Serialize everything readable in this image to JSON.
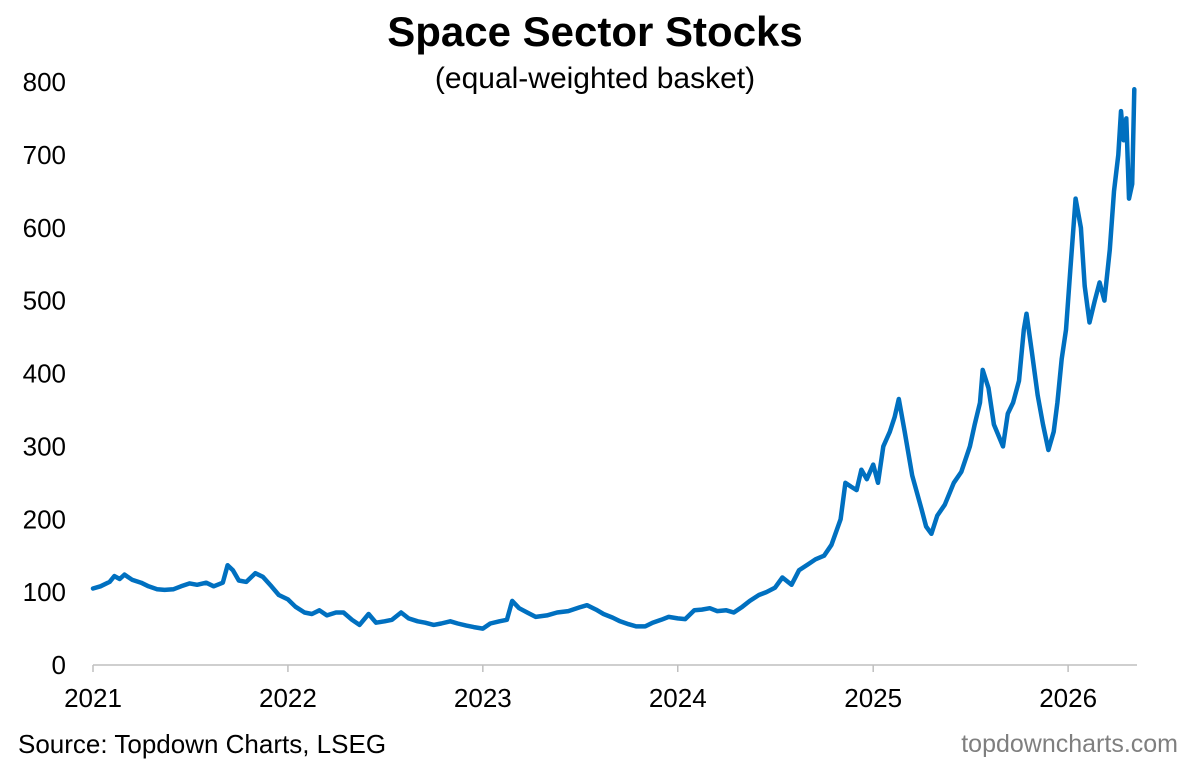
{
  "chart_data": {
    "type": "line",
    "title": "Space Sector Stocks",
    "subtitle": "(equal-weighted basket)",
    "xlabel": "",
    "ylabel": "",
    "ylim": [
      0,
      800
    ],
    "xlim": [
      "2021-01-01",
      "2026-05-10"
    ],
    "y_ticks": [
      "0",
      "100",
      "200",
      "300",
      "400",
      "500",
      "600",
      "700",
      "800"
    ],
    "x_ticks": [
      "2021",
      "2022",
      "2023",
      "2024",
      "2025",
      "2026"
    ],
    "grid": false,
    "legend": "none",
    "series": [
      {
        "color": "#0070C0",
        "points": [
          [
            "2021-01-01",
            105
          ],
          [
            "2021-01-15",
            108
          ],
          [
            "2021-02-01",
            114
          ],
          [
            "2021-02-10",
            122
          ],
          [
            "2021-02-20",
            118
          ],
          [
            "2021-03-01",
            124
          ],
          [
            "2021-03-15",
            117
          ],
          [
            "2021-04-01",
            113
          ],
          [
            "2021-04-15",
            108
          ],
          [
            "2021-05-01",
            104
          ],
          [
            "2021-05-15",
            103
          ],
          [
            "2021-06-01",
            104
          ],
          [
            "2021-06-15",
            108
          ],
          [
            "2021-07-01",
            112
          ],
          [
            "2021-07-15",
            110
          ],
          [
            "2021-08-01",
            113
          ],
          [
            "2021-08-15",
            108
          ],
          [
            "2021-09-01",
            113
          ],
          [
            "2021-09-10",
            137
          ],
          [
            "2021-09-20",
            130
          ],
          [
            "2021-10-01",
            116
          ],
          [
            "2021-10-15",
            114
          ],
          [
            "2021-11-01",
            126
          ],
          [
            "2021-11-15",
            121
          ],
          [
            "2021-12-01",
            108
          ],
          [
            "2021-12-15",
            96
          ],
          [
            "2022-01-01",
            90
          ],
          [
            "2022-01-15",
            80
          ],
          [
            "2022-02-01",
            72
          ],
          [
            "2022-02-15",
            70
          ],
          [
            "2022-03-01",
            75
          ],
          [
            "2022-03-15",
            68
          ],
          [
            "2022-04-01",
            72
          ],
          [
            "2022-04-15",
            72
          ],
          [
            "2022-05-01",
            62
          ],
          [
            "2022-05-15",
            55
          ],
          [
            "2022-06-01",
            70
          ],
          [
            "2022-06-15",
            58
          ],
          [
            "2022-07-01",
            60
          ],
          [
            "2022-07-15",
            62
          ],
          [
            "2022-08-01",
            72
          ],
          [
            "2022-08-15",
            64
          ],
          [
            "2022-09-01",
            60
          ],
          [
            "2022-09-15",
            58
          ],
          [
            "2022-10-01",
            55
          ],
          [
            "2022-10-15",
            57
          ],
          [
            "2022-11-01",
            60
          ],
          [
            "2022-11-15",
            57
          ],
          [
            "2022-12-01",
            54
          ],
          [
            "2022-12-15",
            52
          ],
          [
            "2023-01-01",
            50
          ],
          [
            "2023-01-15",
            57
          ],
          [
            "2023-02-01",
            60
          ],
          [
            "2023-02-15",
            62
          ],
          [
            "2023-02-25",
            88
          ],
          [
            "2023-03-10",
            78
          ],
          [
            "2023-03-25",
            72
          ],
          [
            "2023-04-10",
            66
          ],
          [
            "2023-05-01",
            68
          ],
          [
            "2023-05-20",
            72
          ],
          [
            "2023-06-10",
            74
          ],
          [
            "2023-07-01",
            79
          ],
          [
            "2023-07-15",
            82
          ],
          [
            "2023-08-01",
            76
          ],
          [
            "2023-08-15",
            70
          ],
          [
            "2023-09-01",
            65
          ],
          [
            "2023-09-15",
            60
          ],
          [
            "2023-10-01",
            56
          ],
          [
            "2023-10-15",
            53
          ],
          [
            "2023-11-01",
            53
          ],
          [
            "2023-11-15",
            58
          ],
          [
            "2023-12-01",
            62
          ],
          [
            "2023-12-15",
            66
          ],
          [
            "2024-01-01",
            64
          ],
          [
            "2024-01-15",
            63
          ],
          [
            "2024-02-01",
            75
          ],
          [
            "2024-02-15",
            76
          ],
          [
            "2024-03-01",
            78
          ],
          [
            "2024-03-15",
            74
          ],
          [
            "2024-04-01",
            75
          ],
          [
            "2024-04-15",
            72
          ],
          [
            "2024-05-01",
            80
          ],
          [
            "2024-05-15",
            88
          ],
          [
            "2024-06-01",
            96
          ],
          [
            "2024-06-15",
            100
          ],
          [
            "2024-07-01",
            106
          ],
          [
            "2024-07-15",
            120
          ],
          [
            "2024-08-01",
            110
          ],
          [
            "2024-08-15",
            130
          ],
          [
            "2024-09-01",
            138
          ],
          [
            "2024-09-15",
            145
          ],
          [
            "2024-10-01",
            150
          ],
          [
            "2024-10-15",
            165
          ],
          [
            "2024-11-01",
            200
          ],
          [
            "2024-11-10",
            250
          ],
          [
            "2024-11-20",
            245
          ],
          [
            "2024-12-01",
            240
          ],
          [
            "2024-12-10",
            268
          ],
          [
            "2024-12-20",
            255
          ],
          [
            "2025-01-01",
            275
          ],
          [
            "2025-01-10",
            250
          ],
          [
            "2025-01-20",
            300
          ],
          [
            "2025-02-01",
            320
          ],
          [
            "2025-02-10",
            340
          ],
          [
            "2025-02-18",
            365
          ],
          [
            "2025-03-01",
            320
          ],
          [
            "2025-03-15",
            260
          ],
          [
            "2025-04-01",
            215
          ],
          [
            "2025-04-10",
            190
          ],
          [
            "2025-04-20",
            180
          ],
          [
            "2025-05-01",
            205
          ],
          [
            "2025-05-15",
            220
          ],
          [
            "2025-06-01",
            250
          ],
          [
            "2025-06-15",
            265
          ],
          [
            "2025-07-01",
            300
          ],
          [
            "2025-07-10",
            330
          ],
          [
            "2025-07-20",
            360
          ],
          [
            "2025-07-25",
            405
          ],
          [
            "2025-08-05",
            380
          ],
          [
            "2025-08-15",
            330
          ],
          [
            "2025-09-01",
            300
          ],
          [
            "2025-09-10",
            345
          ],
          [
            "2025-09-20",
            360
          ],
          [
            "2025-10-01",
            390
          ],
          [
            "2025-10-10",
            460
          ],
          [
            "2025-10-15",
            482
          ],
          [
            "2025-10-25",
            430
          ],
          [
            "2025-11-05",
            370
          ],
          [
            "2025-11-15",
            330
          ],
          [
            "2025-11-25",
            295
          ],
          [
            "2025-12-05",
            320
          ],
          [
            "2025-12-12",
            360
          ],
          [
            "2025-12-20",
            420
          ],
          [
            "2025-12-28",
            460
          ],
          [
            "2026-01-05",
            540
          ],
          [
            "2026-01-15",
            640
          ],
          [
            "2026-01-25",
            600
          ],
          [
            "2026-02-01",
            520
          ],
          [
            "2026-02-10",
            470
          ],
          [
            "2026-02-20",
            500
          ],
          [
            "2026-03-01",
            525
          ],
          [
            "2026-03-10",
            500
          ],
          [
            "2026-03-20",
            570
          ],
          [
            "2026-03-28",
            650
          ],
          [
            "2026-04-05",
            700
          ],
          [
            "2026-04-10",
            760
          ],
          [
            "2026-04-15",
            720
          ],
          [
            "2026-04-20",
            750
          ],
          [
            "2026-04-25",
            640
          ],
          [
            "2026-05-01",
            660
          ],
          [
            "2026-05-05",
            790
          ]
        ]
      }
    ]
  },
  "footer": {
    "source": "Source: Topdown Charts, LSEG",
    "watermark": "topdowncharts.com"
  }
}
